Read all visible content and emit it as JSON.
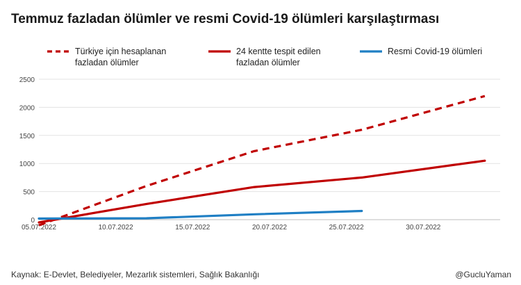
{
  "title": "Temmuz fazladan ölümler ve resmi Covid-19 ölümleri karşılaştırması",
  "source": "Kaynak: E-Devlet, Belediyeler, Mezarlık sistemleri, Sağlık Bakanlığı",
  "credit": "@GucluYaman",
  "colors": {
    "excess_turkiye": "#c00000",
    "excess_24": "#c00000",
    "official": "#1f7fc4"
  },
  "legend": [
    {
      "line1": "Türkiye için hesaplanan",
      "line2": "fazladan ölümler",
      "style": "dashed",
      "color": "#c00000"
    },
    {
      "line1": "24 kentte tespit edilen",
      "line2": "fazladan ölümler",
      "style": "solid",
      "color": "#c00000"
    },
    {
      "line1": "Resmi Covid-19 ölümleri",
      "line2": "",
      "style": "solid",
      "color": "#1f7fc4"
    }
  ],
  "chart_data": {
    "type": "line",
    "title": "Temmuz fazladan ölümler ve resmi Covid-19 ölümleri karşılaştırması",
    "xlabel": "",
    "ylabel": "",
    "x_type": "date",
    "xlim": [
      "2022-07-05",
      "2022-08-04"
    ],
    "ylim": [
      0,
      2500
    ],
    "yticks": [
      0,
      500,
      1000,
      1500,
      2000,
      2500
    ],
    "xticks": [
      "2022-07-05",
      "2022-07-10",
      "2022-07-15",
      "2022-07-20",
      "2022-07-25",
      "2022-07-30"
    ],
    "xtick_labels": [
      "05.07.2022",
      "10.07.2022",
      "15.07.2022",
      "20.07.2022",
      "25.07.2022",
      "30.07.2022"
    ],
    "grid": "horizontal",
    "legend_position": "top",
    "series": [
      {
        "name": "Türkiye için hesaplanan fazladan ölümler",
        "style": "dashed",
        "color": "#c00000",
        "points": [
          {
            "x": "2022-07-05",
            "y": -100
          },
          {
            "x": "2022-07-12",
            "y": 600
          },
          {
            "x": "2022-07-19",
            "y": 1220
          },
          {
            "x": "2022-07-26",
            "y": 1600
          },
          {
            "x": "2022-08-03",
            "y": 2200
          }
        ]
      },
      {
        "name": "24 kentte tespit edilen fazladan ölümler",
        "style": "solid",
        "color": "#c00000",
        "points": [
          {
            "x": "2022-07-05",
            "y": -50
          },
          {
            "x": "2022-07-12",
            "y": 280
          },
          {
            "x": "2022-07-19",
            "y": 580
          },
          {
            "x": "2022-07-26",
            "y": 750
          },
          {
            "x": "2022-08-03",
            "y": 1050
          }
        ]
      },
      {
        "name": "Resmi Covid-19 ölümleri",
        "style": "solid",
        "color": "#1f7fc4",
        "points": [
          {
            "x": "2022-07-05",
            "y": 20
          },
          {
            "x": "2022-07-12",
            "y": 25
          },
          {
            "x": "2022-07-19",
            "y": 95
          },
          {
            "x": "2022-07-26",
            "y": 155
          }
        ]
      }
    ]
  }
}
